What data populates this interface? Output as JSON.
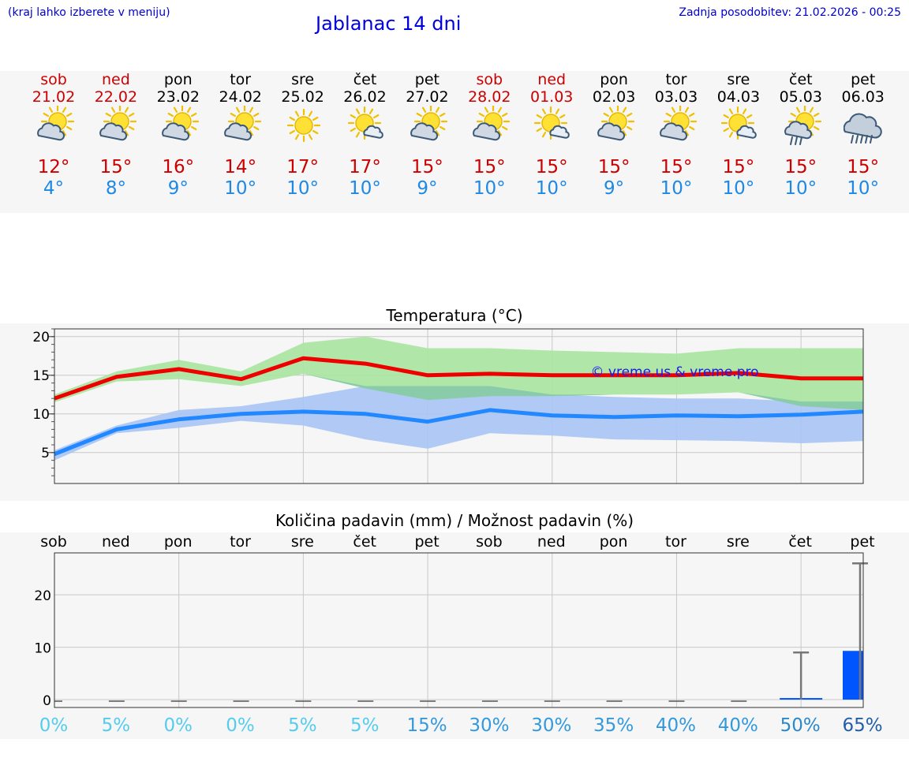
{
  "header": {
    "hint": "(kraj lahko izberete v meniju)",
    "title": "Jablanac 14 dni",
    "updated": "Zadnja posodobitev: 21.02.2026 - 00:25"
  },
  "days": [
    {
      "name": "sob",
      "date": "21.02",
      "weekend": true,
      "icon": "partly-cloudy-icon",
      "tmax": "12°",
      "tmin": "4°"
    },
    {
      "name": "ned",
      "date": "22.02",
      "weekend": true,
      "icon": "partly-cloudy-icon",
      "tmax": "15°",
      "tmin": "8°"
    },
    {
      "name": "pon",
      "date": "23.02",
      "weekend": false,
      "icon": "partly-cloudy-icon",
      "tmax": "16°",
      "tmin": "9°"
    },
    {
      "name": "tor",
      "date": "24.02",
      "weekend": false,
      "icon": "partly-cloudy-icon",
      "tmax": "14°",
      "tmin": "10°"
    },
    {
      "name": "sre",
      "date": "25.02",
      "weekend": false,
      "icon": "sunny-icon",
      "tmax": "17°",
      "tmin": "10°"
    },
    {
      "name": "čet",
      "date": "26.02",
      "weekend": false,
      "icon": "sun-small-cloud-icon",
      "tmax": "17°",
      "tmin": "10°"
    },
    {
      "name": "pet",
      "date": "27.02",
      "weekend": false,
      "icon": "partly-cloudy-icon",
      "tmax": "15°",
      "tmin": "9°"
    },
    {
      "name": "sob",
      "date": "28.02",
      "weekend": true,
      "icon": "partly-cloudy-icon",
      "tmax": "15°",
      "tmin": "10°"
    },
    {
      "name": "ned",
      "date": "01.03",
      "weekend": true,
      "icon": "sun-small-cloud-icon",
      "tmax": "15°",
      "tmin": "10°"
    },
    {
      "name": "pon",
      "date": "02.03",
      "weekend": false,
      "icon": "partly-cloudy-icon",
      "tmax": "15°",
      "tmin": "9°"
    },
    {
      "name": "tor",
      "date": "03.03",
      "weekend": false,
      "icon": "partly-cloudy-icon",
      "tmax": "15°",
      "tmin": "10°"
    },
    {
      "name": "sre",
      "date": "04.03",
      "weekend": false,
      "icon": "sun-small-cloud-icon",
      "tmax": "15°",
      "tmin": "10°"
    },
    {
      "name": "čet",
      "date": "05.03",
      "weekend": false,
      "icon": "sun-cloud-rain-icon",
      "tmax": "15°",
      "tmin": "10°"
    },
    {
      "name": "pet",
      "date": "06.03",
      "weekend": false,
      "icon": "rain-cloud-icon",
      "tmax": "15°",
      "tmin": "10°"
    }
  ],
  "colors": {
    "max_line": "#ee0000",
    "min_line": "#2288ff",
    "max_band": "#a8e6a0",
    "min_band": "#a9c4f5",
    "overlap_band": "#86c8a8",
    "precip_bar": "#0055ff",
    "grid": "#c8c8c8"
  },
  "chart_data": [
    {
      "type": "line",
      "title": "Temperatura (°C)",
      "watermark": "© vreme.us & vreme.pro",
      "ylim": [
        1,
        21
      ],
      "yticks": [
        "5",
        "10",
        "15",
        "20"
      ],
      "x": [
        0,
        1,
        2,
        3,
        4,
        5,
        6,
        7,
        8,
        9,
        10,
        11,
        12,
        13
      ],
      "series": [
        {
          "name": "max",
          "values": [
            12,
            14.8,
            15.8,
            14.5,
            17.2,
            16.5,
            15,
            15.2,
            15,
            15,
            15,
            15.3,
            14.6,
            14.6
          ]
        },
        {
          "name": "min",
          "values": [
            4.8,
            8,
            9.3,
            10,
            10.3,
            10,
            9,
            10.5,
            9.8,
            9.6,
            9.8,
            9.7,
            9.9,
            10.3
          ]
        }
      ],
      "bands": [
        {
          "name": "max-range",
          "upper": [
            12.5,
            15.5,
            17,
            15.5,
            19.2,
            20,
            18.5,
            18.5,
            18.2,
            18,
            17.8,
            18.5,
            18.5,
            18.5
          ],
          "lower": [
            11.5,
            14.2,
            14.5,
            13.6,
            15.2,
            13.3,
            11.8,
            12.3,
            12.3,
            12.5,
            12.5,
            12.8,
            11,
            10.5
          ]
        },
        {
          "name": "min-range",
          "upper": [
            5.3,
            8.5,
            10.5,
            11,
            12.2,
            13.6,
            13.6,
            13.6,
            12.5,
            12.2,
            12,
            12,
            11.6,
            11.6
          ],
          "lower": [
            4,
            7.5,
            8.2,
            9.1,
            8.5,
            6.7,
            5.5,
            7.5,
            7.2,
            6.7,
            6.6,
            6.5,
            6.2,
            6.5
          ]
        }
      ]
    },
    {
      "type": "bar",
      "title": "Količina padavin (mm) / Možnost padavin (%)",
      "categories": [
        "sob",
        "ned",
        "pon",
        "tor",
        "sre",
        "čet",
        "pet",
        "sob",
        "ned",
        "pon",
        "tor",
        "sre",
        "čet",
        "pet"
      ],
      "ylim": [
        -1.5,
        28
      ],
      "yticks": [
        "0",
        "10",
        "20"
      ],
      "values": [
        0,
        0,
        0,
        0,
        0,
        0,
        0,
        0,
        0,
        0,
        0,
        0,
        0.3,
        9.3
      ],
      "error_high": [
        0,
        0,
        0,
        0,
        0,
        0,
        0,
        0,
        0,
        0,
        0,
        0,
        9,
        26
      ],
      "probability": [
        "0%",
        "5%",
        "0%",
        "0%",
        "5%",
        "5%",
        "15%",
        "30%",
        "30%",
        "35%",
        "40%",
        "40%",
        "50%",
        "65%"
      ],
      "probability_colors": [
        "#55ccee",
        "#55ccee",
        "#55ccee",
        "#55ccee",
        "#55ccee",
        "#55ccee",
        "#3399dd",
        "#3399dd",
        "#3399dd",
        "#3399dd",
        "#3399dd",
        "#3399dd",
        "#2a88cc",
        "#225ea8"
      ]
    }
  ]
}
